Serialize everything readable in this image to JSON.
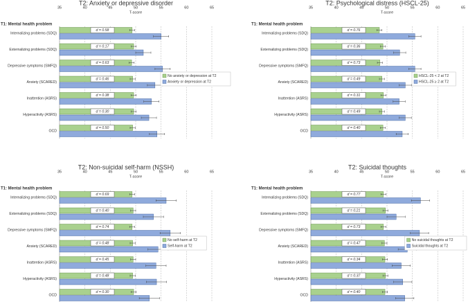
{
  "chart_data": [
    {
      "type": "bar",
      "orientation": "horizontal",
      "title": "T2: Anxiety or depressive disorder",
      "xlabel": "T-score",
      "category_header": "T1: Mental health problem",
      "categories": [
        "Internalizing problems (SDQ)",
        "Externalizing problems (SDQ)",
        "Depressive symptoms (SMFQ)",
        "Anxiety (SCARED)",
        "Inattention (ASRS)",
        "Hyperactivity (ASRS)",
        "OCD"
      ],
      "series": [
        {
          "name": "No anxiety or depression at T2",
          "color": "#a9d18e",
          "values": [
            49.3,
            49.6,
            49.2,
            49.4,
            49.6,
            49.6,
            49.4
          ],
          "errors": [
            0.5,
            0.5,
            0.5,
            0.5,
            0.5,
            0.5,
            0.5
          ]
        },
        {
          "name": "Anxiety or depression at T2",
          "color": "#8faadc",
          "values": [
            55.0,
            51.5,
            55.3,
            53.8,
            53.1,
            52.6,
            54.2
          ],
          "errors": [
            1.5,
            1.5,
            1.5,
            1.5,
            1.5,
            1.5,
            1.5
          ]
        }
      ],
      "effect_labels": [
        "d = 0.58",
        "d = 0.17",
        "d = 0.63",
        "d = 0.46",
        "d = 0.38",
        "d = 0.30",
        "d = 0.50"
      ],
      "xlim": [
        35,
        65
      ],
      "xticks": [
        35,
        40,
        45,
        50,
        55,
        60,
        65
      ],
      "grid": true,
      "legend": "right"
    },
    {
      "type": "bar",
      "orientation": "horizontal",
      "title": "T2: Psychological distress (HSCL-25)",
      "xlabel": "T-score",
      "category_header": "T1: Mental health problem",
      "categories": [
        "Internalizing problems (SDQ)",
        "Externalizing problems (SDQ)",
        "Depressive symptoms (SMFQ)",
        "Anxiety (SCARED)",
        "Inattention (ASRS)",
        "Hyperactivity (ASRS)",
        "OCD"
      ],
      "series": [
        {
          "name": "HSCL-25 < 2 at T2",
          "color": "#a9d18e",
          "values": [
            48.5,
            49.2,
            48.6,
            49.0,
            49.3,
            49.0,
            49.2
          ],
          "errors": [
            0.5,
            0.5,
            0.5,
            0.5,
            0.5,
            0.5,
            0.5
          ]
        },
        {
          "name": "HSCL-25 ≥ 2 at T2",
          "color": "#8faadc",
          "values": [
            55.5,
            52.5,
            55.5,
            53.6,
            52.4,
            53.6,
            53.0
          ],
          "errors": [
            1.2,
            1.2,
            1.2,
            1.2,
            1.2,
            1.2,
            1.2
          ]
        }
      ],
      "effect_labels": [
        "d = 0.76",
        "d = 0.36",
        "d = 0.73",
        "d = 0.49",
        "d = 0.31",
        "d = 0.49",
        "d = 0.40"
      ],
      "xlim": [
        35,
        65
      ],
      "xticks": [
        35,
        40,
        45,
        50,
        55,
        60,
        65
      ],
      "grid": true,
      "legend": "right"
    },
    {
      "type": "bar",
      "orientation": "horizontal",
      "title": "T2: Non-suicidal self-harm (NSSH)",
      "xlabel": "T-score",
      "category_header": "T1: Mental health problem",
      "categories": [
        "Internalizing problems (SDQ)",
        "Externalizing problems (SDQ)",
        "Depressive symptoms (SMFQ)",
        "Anxiety (SCARED)",
        "Inattention (ASRS)",
        "Hyperactivity (ASRS)",
        "OCD"
      ],
      "series": [
        {
          "name": "No self-harm at T2",
          "color": "#a9d18e",
          "values": [
            49.3,
            49.5,
            49.3,
            49.4,
            49.5,
            49.4,
            49.6
          ],
          "errors": [
            0.5,
            0.5,
            0.5,
            0.5,
            0.5,
            0.5,
            0.5
          ]
        },
        {
          "name": "Self-harm at T2",
          "color": "#8faadc",
          "values": [
            56.0,
            53.5,
            56.8,
            54.4,
            54.0,
            54.1,
            52.7
          ],
          "errors": [
            2.0,
            2.0,
            2.0,
            2.0,
            2.0,
            2.0,
            2.0
          ]
        }
      ],
      "effect_labels": [
        "d = 0.69",
        "d = 0.40",
        "d = 0.74",
        "d = 0.48",
        "d = 0.45",
        "d = 0.48",
        "d = 0.30"
      ],
      "xlim": [
        35,
        65
      ],
      "xticks": [
        35,
        40,
        45,
        50,
        55,
        60,
        65
      ],
      "grid": true,
      "legend": "right"
    },
    {
      "type": "bar",
      "orientation": "horizontal",
      "title": "T2: Suicidal thoughts",
      "xlabel": "T-score",
      "category_header": "T1: Mental health problem",
      "categories": [
        "Internalizing problems (SDQ)",
        "Externalizing problems (SDQ)",
        "Depressive symptoms (SMFQ)",
        "Anxiety (SCARED)",
        "Inattention (ASRS)",
        "Hyperactivity (ASRS)",
        "OCD"
      ],
      "series": [
        {
          "name": "No suicidal thoughts at T2",
          "color": "#a9d18e",
          "values": [
            49.3,
            49.7,
            49.3,
            49.5,
            49.6,
            49.7,
            49.6
          ],
          "errors": [
            0.5,
            0.5,
            0.5,
            0.5,
            0.5,
            0.5,
            0.5
          ]
        },
        {
          "name": "Suicidal thoughts at T2",
          "color": "#8faadc",
          "values": [
            56.6,
            51.8,
            56.4,
            54.0,
            52.8,
            53.1,
            53.5
          ],
          "errors": [
            1.8,
            1.8,
            1.8,
            1.8,
            1.8,
            1.8,
            1.8
          ]
        }
      ],
      "effect_labels": [
        "d = 0.77",
        "d = 0.21",
        "d = 0.73",
        "d = 0.47",
        "d = 0.34",
        "d = 0.37",
        "d = 0.40"
      ],
      "xlim": [
        35,
        65
      ],
      "xticks": [
        35,
        40,
        45,
        50,
        55,
        60,
        65
      ],
      "grid": true,
      "legend": "right"
    }
  ]
}
